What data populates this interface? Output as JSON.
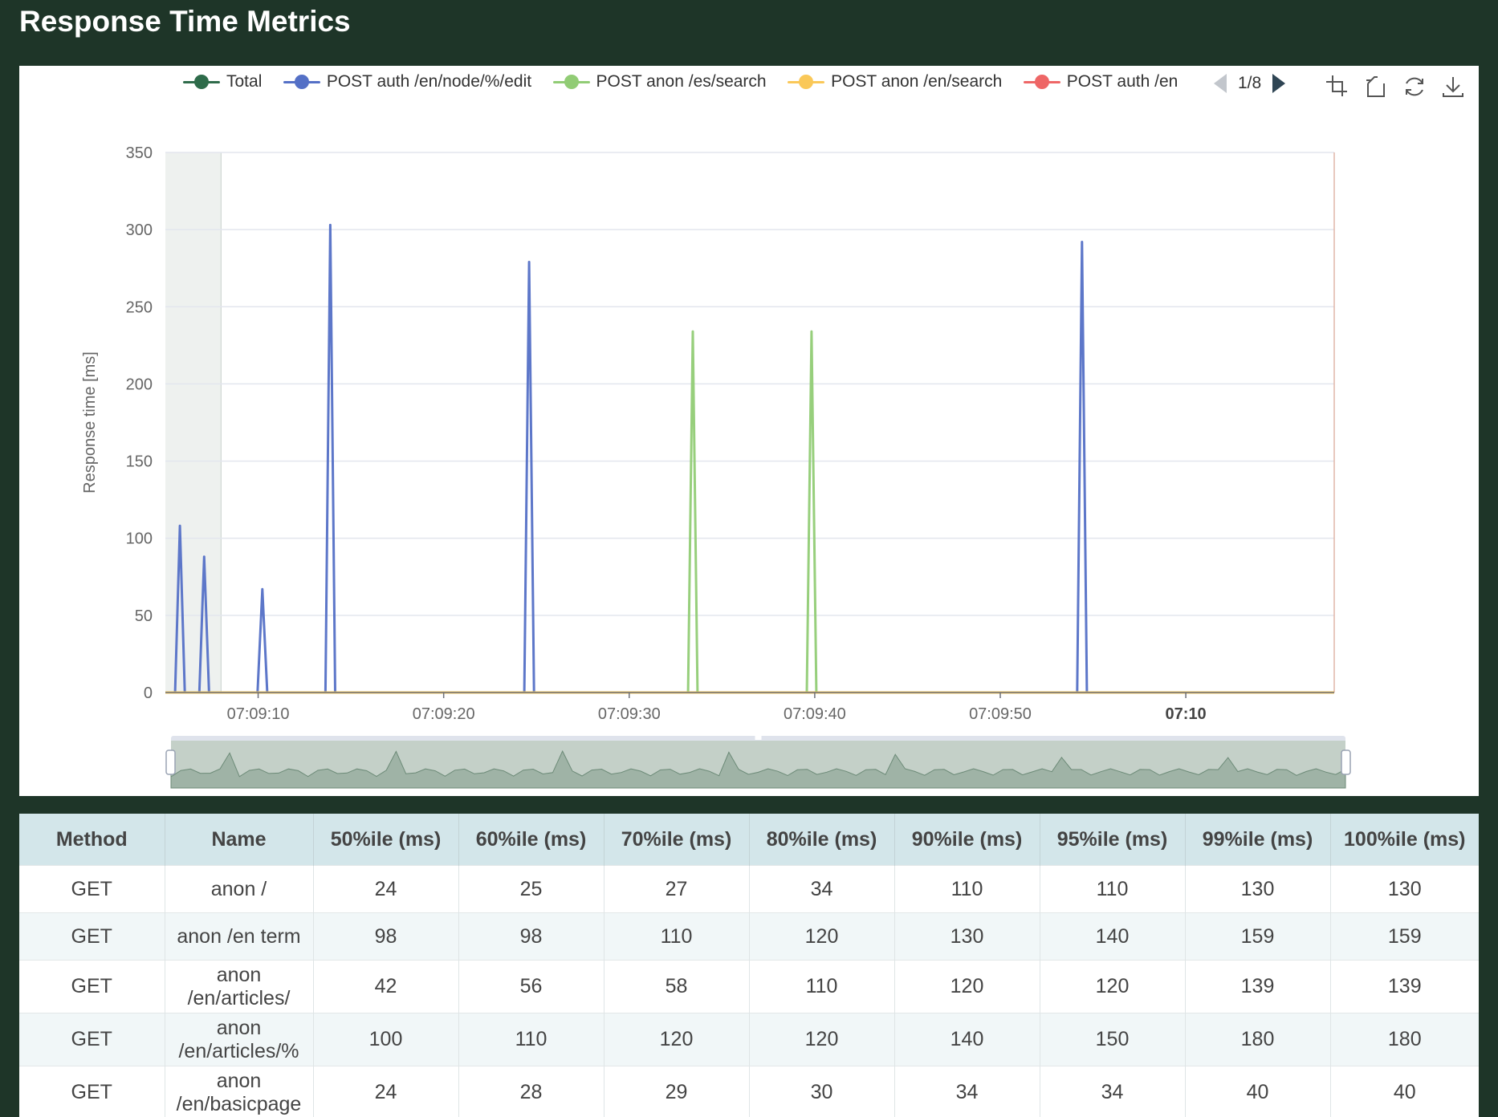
{
  "page": {
    "title": "Response Time Metrics"
  },
  "legend": {
    "items": [
      {
        "label": "Total",
        "color": "#2e6b4a"
      },
      {
        "label": "POST auth /en/node/%/edit",
        "color": "#5470c6"
      },
      {
        "label": "POST anon /es/search",
        "color": "#91cc75"
      },
      {
        "label": "POST anon /en/search",
        "color": "#fac858"
      },
      {
        "label": "POST auth /en",
        "color": "#ee6666"
      }
    ],
    "page_indicator": "1/8"
  },
  "toolbox": {
    "icons": [
      "zoom-select-icon",
      "zoom-reset-icon",
      "restore-icon",
      "download-icon"
    ]
  },
  "chart_data": {
    "type": "line",
    "ylabel": "Response time [ms]",
    "ylim": [
      0,
      350
    ],
    "yticks": [
      "0",
      "50",
      "100",
      "150",
      "200",
      "250",
      "300",
      "350"
    ],
    "xticks": [
      "07:09:10",
      "07:09:20",
      "07:09:30",
      "07:09:40",
      "07:09:50",
      "07:10"
    ],
    "x_tick_seconds": [
      10,
      20,
      30,
      40,
      50,
      60
    ],
    "xlim_seconds": [
      5,
      68
    ],
    "grid": true,
    "legend_position": "top",
    "series": [
      {
        "name": "POST auth /en/node/%/edit",
        "color": "#5470c6",
        "values": [
          0,
          0,
          0,
          108,
          0,
          0,
          0,
          0,
          88,
          0,
          0,
          0,
          0,
          0,
          0,
          0,
          0,
          0,
          0,
          0,
          67,
          0,
          0,
          0,
          0,
          0,
          0,
          0,
          0,
          0,
          0,
          0,
          0,
          0,
          303,
          0,
          0,
          0,
          0,
          0,
          0,
          0,
          0,
          0,
          0,
          0,
          0,
          0,
          0,
          0,
          0,
          0,
          0,
          0,
          0,
          0,
          0,
          0,
          0,
          0,
          0,
          0,
          0,
          0,
          0,
          0,
          0,
          0,
          0,
          0,
          0,
          0,
          0,
          0,
          0,
          279,
          0,
          0,
          0,
          0,
          0,
          0,
          0,
          0,
          0,
          0,
          0,
          0,
          0,
          0,
          0,
          0,
          0,
          0,
          0,
          0,
          0,
          0,
          0,
          0,
          0,
          0,
          0,
          0,
          0,
          0,
          0,
          0,
          0,
          0,
          0,
          0,
          0,
          0,
          0,
          0,
          0,
          0,
          0,
          0,
          0,
          0,
          0,
          0,
          0,
          0,
          0,
          0,
          0,
          0,
          0,
          0,
          0,
          0,
          0,
          0,
          0,
          0,
          0,
          0,
          0,
          0,
          0,
          0,
          0,
          0,
          0,
          0,
          0,
          0,
          0,
          0,
          0,
          0,
          0,
          0,
          0,
          0,
          0,
          0,
          0,
          0,
          0,
          0,
          0,
          0,
          0,
          0,
          0,
          0,
          0,
          0,
          0,
          0,
          0,
          0,
          0,
          0,
          0,
          0,
          0,
          0,
          0,
          0,
          0,
          0,
          0,
          0,
          0,
          292,
          0,
          0,
          0,
          0,
          0,
          0,
          0,
          0,
          0,
          0,
          0,
          0,
          0,
          0,
          0,
          0,
          0,
          0,
          0,
          0,
          0,
          0,
          0,
          0,
          0,
          0,
          0,
          0,
          0,
          0,
          0,
          0,
          0,
          0,
          0,
          0,
          0,
          0,
          0,
          0,
          0,
          0,
          0,
          0,
          0,
          0,
          0,
          0,
          0,
          0,
          0,
          0
        ]
      },
      {
        "name": "POST anon /es/search",
        "color": "#91cc75",
        "values": [
          0,
          0,
          0,
          0,
          0,
          0,
          0,
          0,
          0,
          0,
          0,
          0,
          0,
          0,
          0,
          0,
          0,
          0,
          0,
          0,
          0,
          0,
          0,
          0,
          0,
          0,
          0,
          0,
          0,
          0,
          0,
          0,
          0,
          0,
          0,
          0,
          0,
          0,
          0,
          0,
          0,
          0,
          0,
          0,
          0,
          0,
          0,
          0,
          0,
          0,
          0,
          0,
          0,
          0,
          0,
          0,
          0,
          0,
          0,
          0,
          0,
          0,
          0,
          0,
          0,
          0,
          0,
          0,
          0,
          0,
          0,
          0,
          0,
          0,
          0,
          0,
          0,
          0,
          0,
          0,
          0,
          0,
          0,
          0,
          0,
          0,
          0,
          0,
          0,
          0,
          0,
          0,
          0,
          0,
          0,
          0,
          0,
          0,
          0,
          0,
          0,
          0,
          0,
          0,
          0,
          0,
          0,
          0,
          0,
          0,
          0,
          234,
          0,
          0,
          0,
          0,
          0,
          0,
          0,
          0,
          0,
          0,
          0,
          0,
          0,
          0,
          0,
          0,
          0,
          0,
          0,
          0,
          0,
          0,
          0,
          0,
          234,
          0,
          0,
          0,
          0,
          0,
          0,
          0,
          0,
          0,
          0,
          0,
          0,
          0,
          0,
          0,
          0,
          0,
          0,
          0,
          0,
          0,
          0,
          0,
          0,
          0,
          0,
          0,
          0,
          0,
          0,
          0,
          0,
          0,
          0,
          0,
          0,
          0,
          0,
          0,
          0,
          0,
          0,
          0,
          0,
          0,
          0,
          0,
          0,
          0,
          0,
          0,
          0,
          0,
          0,
          0,
          0,
          0,
          0,
          0,
          0,
          0,
          0,
          0,
          0,
          0,
          0,
          0,
          0,
          0,
          0,
          0,
          0,
          0,
          0,
          0,
          0,
          0,
          0,
          0,
          0,
          0,
          0,
          0,
          0,
          0,
          0,
          0,
          0,
          0,
          0,
          0,
          0,
          0,
          0,
          0,
          0,
          0,
          0,
          0,
          0,
          0,
          0,
          0,
          0,
          0,
          0,
          0,
          0,
          0,
          0
        ]
      },
      {
        "name": "POST anon /en/search",
        "color": "#fac858",
        "values": [
          0,
          0,
          0,
          0,
          0,
          0,
          0,
          0,
          0,
          0,
          0,
          0,
          0,
          0,
          0,
          0,
          0,
          0,
          0,
          0,
          0,
          0,
          0,
          0,
          0,
          0,
          0,
          0,
          0,
          0,
          0,
          0,
          0,
          0,
          0,
          0,
          0,
          0,
          0,
          0,
          0,
          0,
          0,
          0,
          0,
          0,
          0,
          0,
          0,
          0,
          0,
          0,
          0,
          0,
          0,
          0,
          0,
          0,
          0,
          0,
          0,
          0,
          0,
          0,
          0,
          0,
          0,
          0,
          0,
          0,
          0,
          0,
          0,
          0,
          0,
          0,
          0,
          0,
          0,
          0,
          0,
          0,
          0,
          0,
          0,
          0,
          0,
          0,
          0,
          0,
          0,
          0,
          0,
          0,
          0,
          0,
          0,
          0,
          0,
          0,
          0,
          0,
          0,
          0,
          0,
          0,
          0,
          0,
          0,
          0,
          0,
          0,
          0,
          0,
          0,
          0,
          0,
          0,
          0,
          0,
          0,
          0,
          0,
          0,
          0,
          0,
          0,
          0,
          0,
          0,
          0,
          0,
          0,
          0,
          0,
          0,
          0,
          0,
          0,
          0,
          0,
          0,
          0,
          0,
          0,
          0,
          0,
          0,
          0,
          0,
          0,
          0,
          0,
          0,
          0,
          0,
          0,
          0,
          0,
          0,
          0,
          0,
          0,
          0,
          0,
          0,
          0,
          0,
          0,
          0,
          0,
          0,
          0,
          0,
          0,
          0,
          0,
          0,
          0,
          0,
          0,
          0,
          0,
          0,
          0,
          0,
          0,
          0,
          0,
          0,
          0,
          0,
          0,
          0,
          0,
          0,
          0,
          0,
          0,
          0,
          0,
          0,
          0,
          0,
          0,
          0,
          0,
          0,
          0,
          0,
          0,
          0,
          0,
          0,
          0,
          0,
          0,
          0,
          0,
          0,
          0,
          0,
          0,
          0,
          0,
          0,
          0,
          0,
          0,
          0,
          0,
          0,
          0,
          0,
          0,
          0,
          0,
          0,
          0,
          0,
          0,
          0,
          0,
          0,
          0,
          0,
          0,
          0,
          0,
          0,
          0,
          0
        ]
      }
    ]
  },
  "table": {
    "headers": [
      "Method",
      "Name",
      "50%ile (ms)",
      "60%ile (ms)",
      "70%ile (ms)",
      "80%ile (ms)",
      "90%ile (ms)",
      "95%ile (ms)",
      "99%ile (ms)",
      "100%ile (ms)"
    ],
    "rows": [
      [
        "GET",
        "anon /",
        "24",
        "25",
        "27",
        "34",
        "110",
        "110",
        "130",
        "130"
      ],
      [
        "GET",
        "anon /en term",
        "98",
        "98",
        "110",
        "120",
        "130",
        "140",
        "159",
        "159"
      ],
      [
        "GET",
        "anon /en/articles/",
        "42",
        "56",
        "58",
        "110",
        "120",
        "120",
        "139",
        "139"
      ],
      [
        "GET",
        "anon /en/articles/%",
        "100",
        "110",
        "120",
        "120",
        "140",
        "150",
        "180",
        "180"
      ],
      [
        "GET",
        "anon /en/basicpage",
        "24",
        "28",
        "29",
        "30",
        "34",
        "34",
        "40",
        "40"
      ]
    ]
  }
}
